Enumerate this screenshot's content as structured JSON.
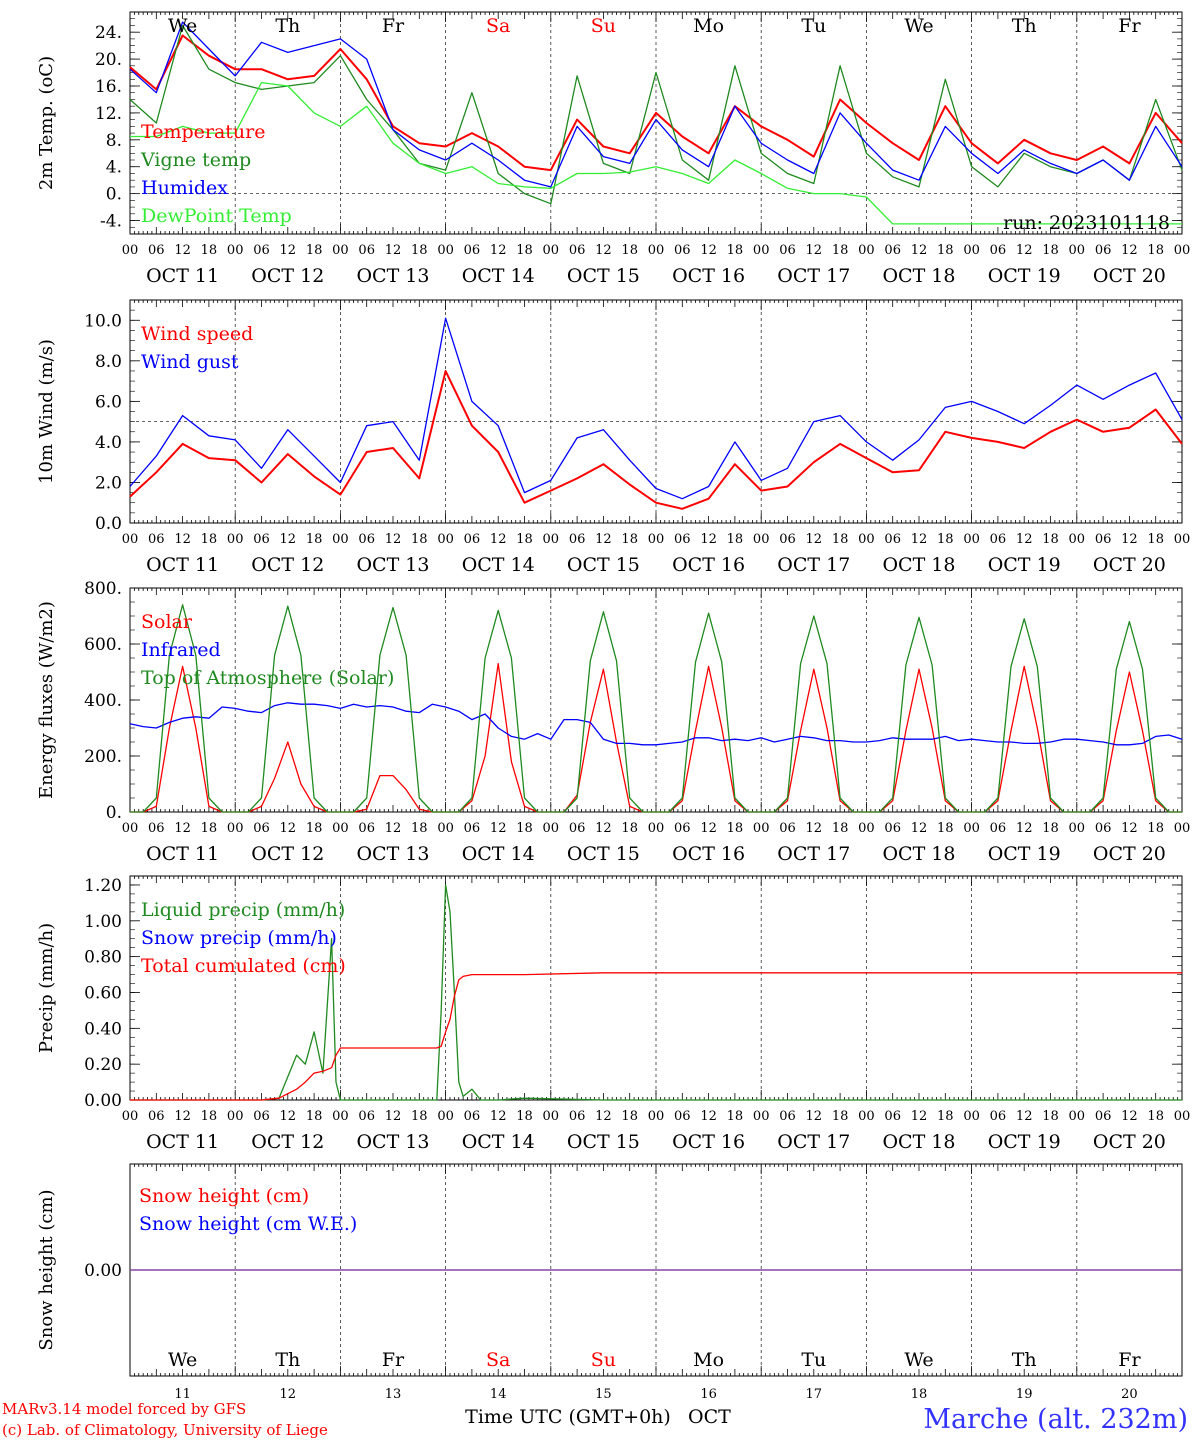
{
  "run_label": "run: 2023101118",
  "day_names": [
    "We",
    "Th",
    "Fr",
    "Sa",
    "Su",
    "Mo",
    "Tu",
    "We",
    "Th",
    "Fr"
  ],
  "day_name_colors": [
    "#000000",
    "#000000",
    "#000000",
    "#ff0000",
    "#ff0000",
    "#000000",
    "#000000",
    "#000000",
    "#000000",
    "#000000"
  ],
  "date_labels": [
    "OCT 11",
    "OCT 12",
    "OCT 13",
    "OCT 14",
    "OCT 15",
    "OCT 16",
    "OCT 17",
    "OCT 18",
    "OCT 19",
    "OCT 20"
  ],
  "hour_ticks": [
    "00",
    "06",
    "12",
    "18"
  ],
  "hour_end": "00",
  "day_numbers": [
    "11",
    "12",
    "13",
    "14",
    "15",
    "16",
    "17",
    "18",
    "19",
    "20"
  ],
  "xlabel": "Time UTC (GMT+0h)",
  "month_label": "OCT",
  "footer_model": "MARv3.14 model forced by GFS",
  "footer_lab": "(c) Lab. of Climatology, University of Liege",
  "station": "Marche (alt. 232m)",
  "colors": {
    "red": "#ff0000",
    "darkgreen": "#1f8a1f",
    "blue": "#0000ff",
    "lightgreen": "#33ee33",
    "purple": "#7f3f9f"
  },
  "chart_data": [
    {
      "type": "line",
      "ylabel": "2m Temp. (oC)",
      "ylim": [
        -6,
        27
      ],
      "yticks": [
        -4,
        0,
        4,
        8,
        12,
        16,
        20,
        24
      ],
      "ytick_labels": [
        "-4.",
        "0.",
        "4.",
        "8.",
        "12.",
        "16.",
        "20.",
        "24."
      ],
      "ref_line": 0,
      "x_hours": [
        0,
        6,
        12,
        18,
        24,
        30,
        36,
        42,
        48,
        54,
        60,
        66,
        72,
        78,
        84,
        90,
        96,
        102,
        108,
        114,
        120,
        126,
        132,
        138,
        144,
        150,
        156,
        162,
        168,
        174,
        180,
        186,
        192,
        198,
        204,
        210,
        216,
        222,
        228,
        234,
        240
      ],
      "series": [
        {
          "name": "Temperature",
          "color": "red",
          "values": [
            18.8,
            15.5,
            23.5,
            20.5,
            18.5,
            18.5,
            17.0,
            17.5,
            21.5,
            17.0,
            10.0,
            7.5,
            7.0,
            9.0,
            7.0,
            4.0,
            3.5,
            11.0,
            7.0,
            6.0,
            12.0,
            8.5,
            6.0,
            13.0,
            10.0,
            8.0,
            5.5,
            14.0,
            10.5,
            7.5,
            5.0,
            13.0,
            7.5,
            4.5,
            8.0,
            6.0,
            5.0,
            7.0,
            4.5,
            12.0,
            7.5
          ]
        },
        {
          "name": "Vigne temp",
          "color": "darkgreen",
          "values": [
            14.0,
            10.5,
            25.0,
            18.5,
            16.5,
            15.5,
            16.0,
            16.5,
            20.5,
            14.0,
            9.5,
            4.5,
            3.5,
            15.0,
            3.0,
            0.0,
            -1.5,
            17.5,
            4.5,
            3.0,
            18.0,
            5.0,
            2.0,
            19.0,
            6.0,
            3.0,
            1.5,
            19.0,
            6.0,
            2.5,
            1.0,
            17.0,
            4.0,
            1.0,
            6.0,
            4.0,
            3.0,
            5.0,
            2.0,
            14.0,
            3.5
          ]
        },
        {
          "name": "Humidex",
          "color": "blue",
          "values": [
            18.5,
            15.0,
            25.5,
            21.5,
            17.5,
            22.5,
            21.0,
            22.0,
            23.0,
            20.0,
            9.5,
            6.5,
            5.0,
            7.5,
            5.0,
            2.0,
            1.0,
            10.0,
            5.5,
            4.5,
            11.0,
            6.5,
            4.0,
            13.0,
            7.5,
            5.0,
            3.0,
            12.0,
            7.5,
            3.5,
            2.0,
            10.0,
            6.0,
            3.0,
            6.5,
            4.5,
            3.0,
            5.0,
            2.0,
            10.0,
            4.0
          ]
        },
        {
          "name": "DewPoint Temp",
          "color": "lightgreen",
          "values": [
            8.5,
            8.5,
            10.0,
            9.0,
            9.0,
            16.5,
            16.0,
            12.0,
            10.0,
            13.0,
            7.5,
            4.5,
            3.0,
            4.0,
            1.5,
            1.0,
            0.8,
            3.0,
            3.0,
            3.2,
            4.0,
            3.0,
            1.5,
            5.0,
            3.0,
            0.8,
            0.0,
            0.0,
            -0.5,
            -4.5,
            -4.5,
            -4.5,
            -4.5,
            -4.5,
            -4.5,
            -4.5,
            -4.5,
            -4.5,
            -4.5,
            -4.5,
            -4.5
          ]
        }
      ]
    },
    {
      "type": "line",
      "ylabel": "10m Wind (m/s)",
      "ylim": [
        0,
        11
      ],
      "yticks": [
        0,
        2,
        4,
        6,
        8,
        10
      ],
      "ytick_labels": [
        "0.0",
        "2.0",
        "4.0",
        "6.0",
        "8.0",
        "10.0"
      ],
      "ref_line": 5,
      "x_hours": [
        0,
        6,
        12,
        18,
        24,
        30,
        36,
        42,
        48,
        54,
        60,
        66,
        72,
        78,
        84,
        90,
        96,
        102,
        108,
        114,
        120,
        126,
        132,
        138,
        144,
        150,
        156,
        162,
        168,
        174,
        180,
        186,
        192,
        198,
        204,
        210,
        216,
        222,
        228,
        234,
        240
      ],
      "series": [
        {
          "name": "Wind speed",
          "color": "red",
          "values": [
            1.3,
            2.5,
            3.9,
            3.2,
            3.1,
            2.0,
            3.4,
            2.3,
            1.4,
            3.5,
            3.7,
            2.2,
            7.5,
            4.8,
            3.5,
            1.0,
            1.6,
            2.2,
            2.9,
            1.9,
            1.0,
            0.7,
            1.2,
            2.9,
            1.6,
            1.8,
            3.0,
            3.9,
            3.2,
            2.5,
            2.6,
            4.5,
            4.2,
            4.0,
            3.7,
            4.5,
            5.1,
            4.5,
            4.7,
            5.6,
            3.9
          ]
        },
        {
          "name": "Wind gust",
          "color": "blue",
          "values": [
            1.8,
            3.3,
            5.3,
            4.3,
            4.1,
            2.7,
            4.6,
            3.3,
            2.0,
            4.8,
            5.0,
            3.1,
            10.1,
            6.0,
            4.8,
            1.5,
            2.1,
            4.2,
            4.6,
            3.1,
            1.7,
            1.2,
            1.8,
            4.0,
            2.1,
            2.7,
            5.0,
            5.3,
            4.0,
            3.1,
            4.1,
            5.7,
            6.0,
            5.5,
            4.9,
            5.8,
            6.8,
            6.1,
            6.8,
            7.4,
            5.1
          ]
        }
      ]
    },
    {
      "type": "line",
      "ylabel": "Energy fluxes (W/m2)",
      "ylim": [
        0,
        800
      ],
      "yticks": [
        0,
        200,
        400,
        600,
        800
      ],
      "ytick_labels": [
        "0.",
        "200.",
        "400.",
        "600.",
        "800."
      ],
      "x_hours": [
        0,
        3,
        6,
        9,
        12,
        15,
        18,
        21,
        24,
        27,
        30,
        33,
        36,
        39,
        42,
        45,
        48,
        51,
        54,
        57,
        60,
        63,
        66,
        69,
        72,
        75,
        78,
        81,
        84,
        87,
        90,
        93,
        96,
        99,
        102,
        105,
        108,
        111,
        114,
        117,
        120,
        123,
        126,
        129,
        132,
        135,
        138,
        141,
        144,
        147,
        150,
        153,
        156,
        159,
        162,
        165,
        168,
        171,
        174,
        177,
        180,
        183,
        186,
        189,
        192,
        195,
        198,
        201,
        204,
        207,
        210,
        213,
        216,
        219,
        222,
        225,
        228,
        231,
        234,
        237,
        240
      ],
      "series": [
        {
          "name": "Solar",
          "color": "red",
          "values": [
            0,
            0,
            20,
            300,
            520,
            300,
            20,
            0,
            0,
            0,
            20,
            120,
            250,
            100,
            20,
            0,
            0,
            0,
            10,
            130,
            130,
            80,
            10,
            0,
            0,
            0,
            40,
            200,
            530,
            180,
            20,
            0,
            0,
            0,
            60,
            320,
            510,
            250,
            20,
            0,
            0,
            0,
            40,
            290,
            520,
            300,
            40,
            0,
            0,
            0,
            40,
            290,
            510,
            300,
            40,
            0,
            0,
            0,
            40,
            290,
            510,
            300,
            40,
            0,
            0,
            0,
            40,
            290,
            520,
            300,
            40,
            0,
            0,
            0,
            40,
            290,
            500,
            290,
            40,
            0,
            0
          ]
        },
        {
          "name": "Infrared",
          "color": "blue",
          "values": [
            315,
            305,
            300,
            320,
            335,
            340,
            335,
            375,
            370,
            360,
            355,
            380,
            390,
            385,
            385,
            380,
            370,
            385,
            375,
            380,
            375,
            360,
            355,
            385,
            375,
            360,
            330,
            350,
            300,
            270,
            260,
            280,
            260,
            330,
            330,
            320,
            260,
            245,
            245,
            240,
            240,
            245,
            250,
            265,
            265,
            255,
            260,
            255,
            265,
            250,
            260,
            270,
            265,
            255,
            255,
            250,
            250,
            255,
            265,
            260,
            260,
            260,
            270,
            255,
            260,
            255,
            250,
            250,
            245,
            245,
            250,
            260,
            260,
            255,
            250,
            240,
            240,
            245,
            270,
            275,
            260
          ]
        },
        {
          "name": "Top of Atmosphere (Solar)",
          "color": "darkgreen",
          "values": [
            0,
            0,
            50,
            560,
            740,
            560,
            50,
            0,
            0,
            0,
            50,
            560,
            735,
            560,
            50,
            0,
            0,
            0,
            50,
            560,
            730,
            560,
            50,
            0,
            0,
            0,
            50,
            550,
            720,
            550,
            50,
            0,
            0,
            0,
            50,
            540,
            715,
            540,
            50,
            0,
            0,
            0,
            50,
            535,
            710,
            535,
            50,
            0,
            0,
            0,
            50,
            530,
            700,
            530,
            50,
            0,
            0,
            0,
            50,
            525,
            695,
            525,
            50,
            0,
            0,
            0,
            50,
            520,
            690,
            520,
            50,
            0,
            0,
            0,
            50,
            510,
            680,
            510,
            50,
            0,
            0
          ]
        }
      ]
    },
    {
      "type": "line",
      "ylabel": "Precip (mm/h)",
      "ylim": [
        0,
        1.25
      ],
      "yticks": [
        0,
        0.2,
        0.4,
        0.6,
        0.8,
        1.0,
        1.2
      ],
      "ytick_labels": [
        "0.00",
        "0.20",
        "0.40",
        "0.60",
        "0.80",
        "1.00",
        "1.20"
      ],
      "x_hours": [
        0,
        12,
        30,
        34,
        38,
        40,
        42,
        44,
        46,
        47,
        48,
        49,
        50,
        56,
        60,
        70,
        71,
        72,
        73,
        74,
        75,
        76,
        78,
        80,
        82,
        84,
        90,
        108,
        120,
        240
      ],
      "series": [
        {
          "name": "Liquid precip (mm/h)",
          "color": "darkgreen",
          "values": [
            0,
            0,
            0,
            0.01,
            0.25,
            0.2,
            0.38,
            0.15,
            0.9,
            0.1,
            0,
            0,
            0,
            0,
            0,
            0,
            0.5,
            1.2,
            1.05,
            0.6,
            0.1,
            0.02,
            0.06,
            0,
            0,
            0,
            0.01,
            0,
            0,
            0
          ]
        },
        {
          "name": "Total cumulated (cm)",
          "color": "red",
          "values": [
            0,
            0,
            0,
            0.01,
            0.06,
            0.1,
            0.15,
            0.16,
            0.18,
            0.25,
            0.29,
            0.29,
            0.29,
            0.29,
            0.29,
            0.29,
            0.3,
            0.38,
            0.45,
            0.58,
            0.67,
            0.69,
            0.7,
            0.7,
            0.7,
            0.7,
            0.7,
            0.71,
            0.71,
            0.71
          ]
        }
      ],
      "legend_extra": [
        "Snow precip (mm/h)"
      ]
    },
    {
      "type": "line",
      "ylabel": "Snow height (cm)",
      "ytick_labels": [
        "0.00"
      ],
      "series": [
        {
          "name": "Snow height (cm)",
          "color": "red",
          "values": [
            0,
            0
          ]
        },
        {
          "name": "Snow height (cm W.E.)",
          "color": "blue",
          "values": [
            0,
            0
          ]
        }
      ]
    }
  ]
}
